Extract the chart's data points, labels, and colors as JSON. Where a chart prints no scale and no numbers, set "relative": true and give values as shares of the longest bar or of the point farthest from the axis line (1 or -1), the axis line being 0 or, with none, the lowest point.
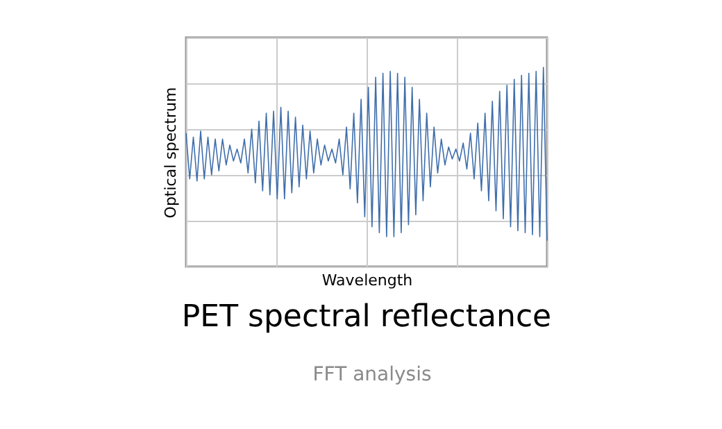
{
  "chart_data": {
    "type": "line",
    "relative": true,
    "xlabel": "Wavelength",
    "ylabel": "Optical spectrum",
    "grid": true,
    "tick_labels": false,
    "annotations": [
      "PET spectral reflectance",
      "FFT analysis"
    ],
    "categories": [
      null,
      null,
      null,
      null,
      null,
      null,
      null,
      null,
      null,
      null,
      null,
      null,
      null,
      null,
      null,
      null,
      null,
      null,
      null,
      null,
      null,
      null,
      null,
      null,
      null,
      null,
      null,
      null,
      null,
      null,
      null,
      null,
      null,
      null,
      null,
      null,
      null,
      null,
      null,
      null,
      null,
      null,
      null,
      null,
      null,
      null,
      null,
      null,
      null,
      null,
      null,
      null,
      null,
      null,
      null,
      null,
      null,
      null,
      null,
      null,
      null,
      null,
      null,
      null,
      null,
      null,
      null,
      null,
      null,
      null,
      null,
      null,
      null,
      null,
      null,
      null,
      null,
      null,
      null,
      null,
      null,
      null,
      null,
      null,
      null,
      null,
      null,
      null,
      null,
      null,
      null,
      null,
      null,
      null,
      null,
      null,
      null,
      null,
      null,
      null
    ],
    "series": [
      {
        "color": "#3f6eab",
        "values": [
          0.67,
          0.44,
          0.65,
          0.43,
          0.68,
          0.44,
          0.65,
          0.46,
          0.64,
          0.48,
          0.64,
          0.51,
          0.61,
          0.53,
          0.59,
          0.52,
          0.64,
          0.47,
          0.69,
          0.42,
          0.73,
          0.38,
          0.77,
          0.36,
          0.78,
          0.34,
          0.8,
          0.34,
          0.78,
          0.37,
          0.75,
          0.4,
          0.71,
          0.44,
          0.68,
          0.47,
          0.64,
          0.51,
          0.61,
          0.53,
          0.59,
          0.52,
          0.64,
          0.46,
          0.7,
          0.39,
          0.77,
          0.32,
          0.84,
          0.25,
          0.9,
          0.2,
          0.95,
          0.17,
          0.97,
          0.15,
          0.98,
          0.15,
          0.97,
          0.17,
          0.95,
          0.21,
          0.9,
          0.26,
          0.84,
          0.33,
          0.77,
          0.4,
          0.7,
          0.47,
          0.64,
          0.51,
          0.6,
          0.54,
          0.59,
          0.53,
          0.62,
          0.49,
          0.67,
          0.44,
          0.72,
          0.38,
          0.77,
          0.33,
          0.83,
          0.28,
          0.88,
          0.24,
          0.91,
          0.2,
          0.94,
          0.18,
          0.96,
          0.17,
          0.97,
          0.16,
          0.98,
          0.15,
          1.0,
          0.13
        ]
      }
    ]
  }
}
